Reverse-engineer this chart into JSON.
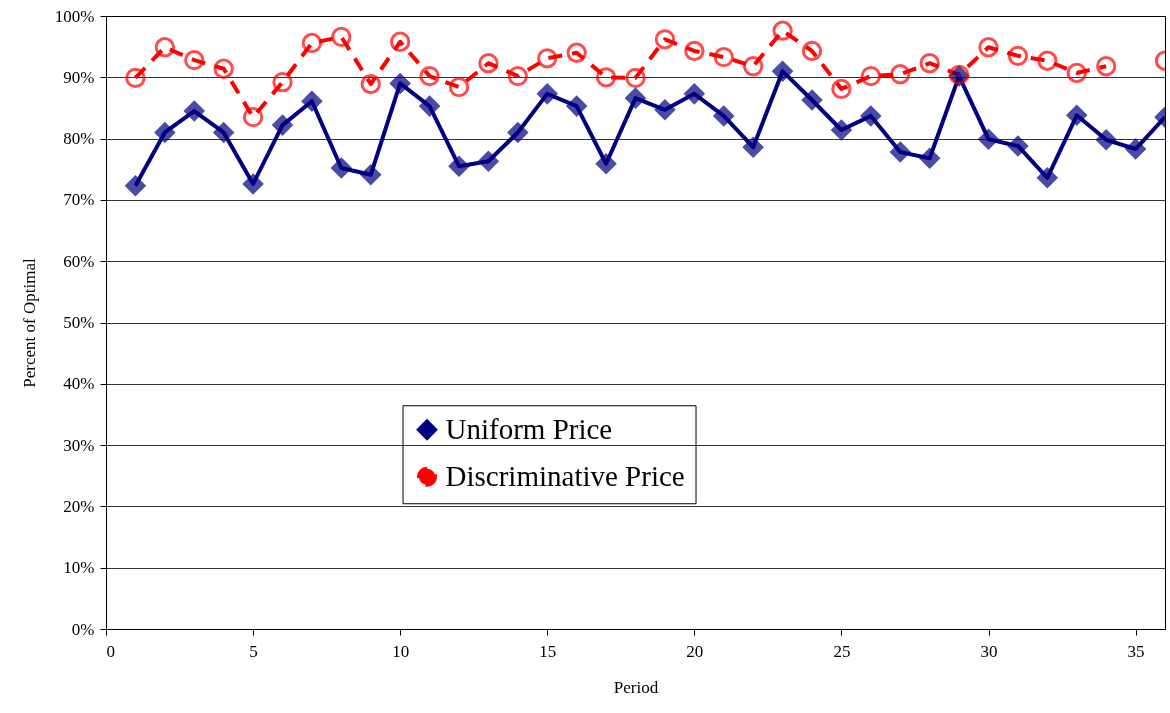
{
  "chart_data": {
    "type": "line",
    "xlabel": "Period",
    "ylabel": "Percent of Optimal",
    "x": [
      1,
      2,
      3,
      4,
      5,
      6,
      7,
      8,
      9,
      10,
      11,
      12,
      13,
      14,
      15,
      16,
      17,
      18,
      19,
      20,
      21,
      22,
      23,
      24,
      25,
      26,
      27,
      28,
      29,
      30,
      31,
      32,
      33,
      34,
      35,
      36
    ],
    "series": [
      {
        "name": "Uniform Price",
        "color": "#000080",
        "marker": "diamond",
        "line_style": "solid",
        "values": [
          72.3,
          81.0,
          84.5,
          81.0,
          72.6,
          82.2,
          86.1,
          75.2,
          74.1,
          89.0,
          85.3,
          75.5,
          76.3,
          81.0,
          87.3,
          85.3,
          75.9,
          86.6,
          84.7,
          87.3,
          83.7,
          78.6,
          91.0,
          86.3,
          81.4,
          83.7,
          77.8,
          76.8,
          90.2,
          79.9,
          78.8,
          73.6,
          83.8,
          79.8,
          78.3,
          83.5
        ]
      },
      {
        "name": "Discriminative Price",
        "color": "#ff0000",
        "marker": "circle",
        "line_style": "dashed",
        "values": [
          89.9,
          94.9,
          92.8,
          91.4,
          83.5,
          89.2,
          95.6,
          96.6,
          88.9,
          95.8,
          90.2,
          88.4,
          92.3,
          90.2,
          93.1,
          94.0,
          90.0,
          89.9,
          96.2,
          94.3,
          93.3,
          91.8,
          97.6,
          94.3,
          88.1,
          90.2,
          90.5,
          92.3,
          90.4,
          94.9,
          93.5,
          92.7,
          90.7,
          91.8,
          null,
          92.7
        ]
      }
    ],
    "xlim": [
      0,
      36
    ],
    "xticks": [
      0,
      5,
      10,
      15,
      20,
      25,
      30,
      35
    ],
    "ylim": [
      0,
      100
    ],
    "yticks": [
      {
        "value": 0,
        "label": "0%"
      },
      {
        "value": 10,
        "label": "10%"
      },
      {
        "value": 20,
        "label": "20%"
      },
      {
        "value": 30,
        "label": "30%"
      },
      {
        "value": 40,
        "label": "40%"
      },
      {
        "value": 50,
        "label": "50%"
      },
      {
        "value": 60,
        "label": "60%"
      },
      {
        "value": 70,
        "label": "70%"
      },
      {
        "value": 80,
        "label": "80%"
      },
      {
        "value": 90,
        "label": "90%"
      },
      {
        "value": 100,
        "label": "100%"
      }
    ],
    "grid": "y",
    "legend": "bottom"
  }
}
